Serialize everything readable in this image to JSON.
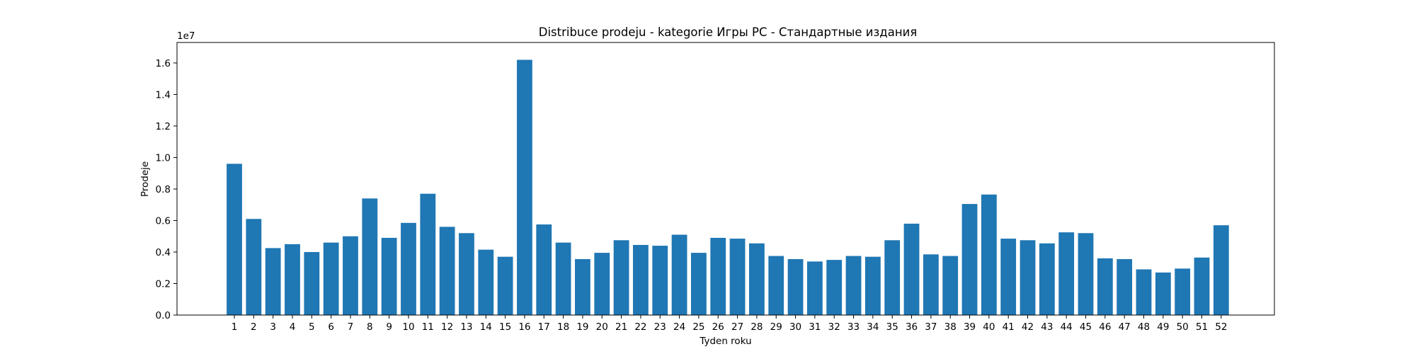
{
  "chart_data": {
    "type": "bar",
    "title": "Distribuce prodeju  - kategorie Игры PC - Стандартные издания",
    "xlabel": "Tyden roku",
    "ylabel": "Prodeje",
    "offset_label": "1e7",
    "y_scale_multiplier": 10000000,
    "ylim": [
      0,
      17300000
    ],
    "yticks": [
      0,
      2000000,
      4000000,
      6000000,
      8000000,
      10000000,
      12000000,
      14000000,
      16000000
    ],
    "ytick_labels": [
      "0.0",
      "0.2",
      "0.4",
      "0.6",
      "0.8",
      "1.0",
      "1.2",
      "1.4",
      "1.6"
    ],
    "bar_color": "#1f77b4",
    "categories": [
      "1",
      "2",
      "3",
      "4",
      "5",
      "6",
      "7",
      "8",
      "9",
      "10",
      "11",
      "12",
      "13",
      "14",
      "15",
      "16",
      "17",
      "18",
      "19",
      "20",
      "21",
      "22",
      "23",
      "24",
      "25",
      "26",
      "27",
      "28",
      "29",
      "30",
      "31",
      "32",
      "33",
      "34",
      "35",
      "36",
      "37",
      "38",
      "39",
      "40",
      "41",
      "42",
      "43",
      "44",
      "45",
      "46",
      "47",
      "48",
      "49",
      "50",
      "51",
      "52"
    ],
    "values": [
      9600000,
      6100000,
      4250000,
      4500000,
      4000000,
      4600000,
      5000000,
      7400000,
      4900000,
      5850000,
      7700000,
      5600000,
      5200000,
      4150000,
      3700000,
      16200000,
      5750000,
      4600000,
      3550000,
      3950000,
      4750000,
      4450000,
      4400000,
      5100000,
      3950000,
      4900000,
      4850000,
      4550000,
      3750000,
      3550000,
      3400000,
      3500000,
      3750000,
      3700000,
      4750000,
      5800000,
      3850000,
      3750000,
      7050000,
      7650000,
      4850000,
      4750000,
      4550000,
      5250000,
      5200000,
      3600000,
      3550000,
      2900000,
      2700000,
      2950000,
      3650000,
      5700000
    ]
  }
}
